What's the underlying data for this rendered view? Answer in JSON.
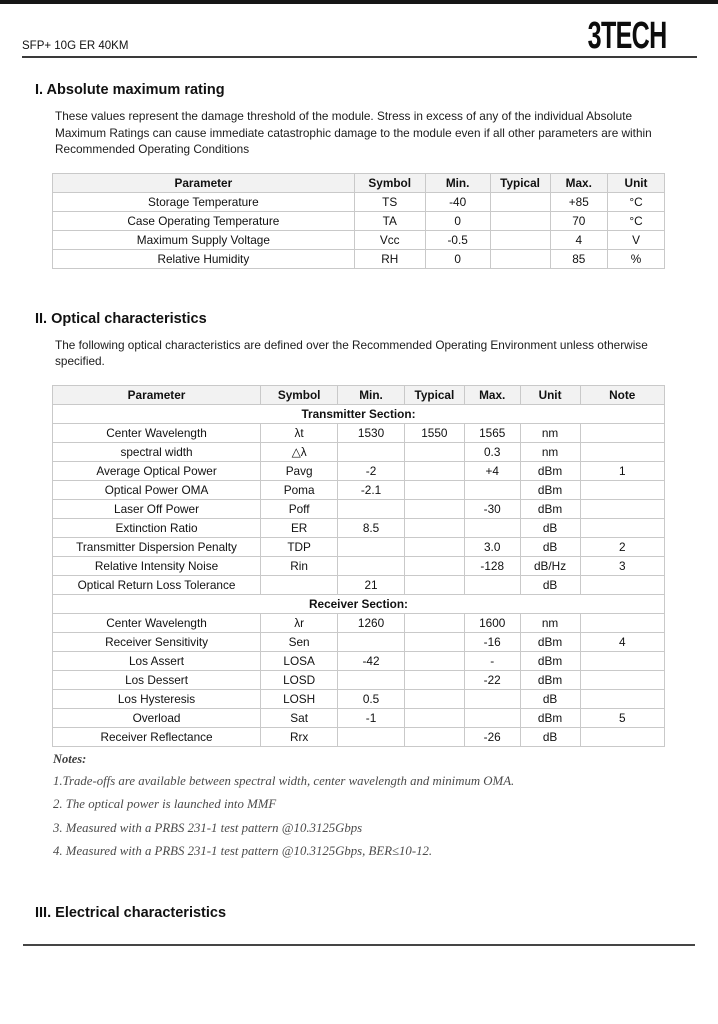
{
  "header": {
    "product": "SFP+ 10G ER 40KM",
    "logo": "3TECH"
  },
  "section1": {
    "title": "I. Absolute maximum rating",
    "description": "These values represent the damage threshold of the module. Stress in excess of any of the individual Absolute Maximum Ratings can cause immediate catastrophic damage to the module even if all other parameters are within Recommended Operating Conditions",
    "table": {
      "headers": [
        "Parameter",
        "Symbol",
        "Min.",
        "Typical",
        "Max.",
        "Unit"
      ],
      "rows": [
        [
          "Storage Temperature",
          "TS",
          "-40",
          "",
          "+85",
          "°C"
        ],
        [
          "Case Operating Temperature",
          "TA",
          "0",
          "",
          "70",
          "°C"
        ],
        [
          "Maximum Supply Voltage",
          "Vcc",
          "-0.5",
          "",
          "4",
          "V"
        ],
        [
          "Relative Humidity",
          "RH",
          "0",
          "",
          "85",
          "%"
        ]
      ]
    }
  },
  "section2": {
    "title": "II. Optical characteristics",
    "description": "The following optical characteristics are defined over the Recommended Operating Environment unless otherwise specified.",
    "table": {
      "headers": [
        "Parameter",
        "Symbol",
        "Min.",
        "Typical",
        "Max.",
        "Unit",
        "Note"
      ],
      "groups": [
        {
          "section_label": "Transmitter Section:",
          "rows": [
            [
              "Center Wavelength",
              "λt",
              "1530",
              "1550",
              "1565",
              "nm",
              ""
            ],
            [
              "spectral width",
              "△λ",
              "",
              "",
              "0.3",
              "nm",
              ""
            ],
            [
              "Average Optical Power",
              "Pavg",
              "-2",
              "",
              "+4",
              "dBm",
              "1"
            ],
            [
              "Optical Power OMA",
              "Poma",
              "-2.1",
              "",
              "",
              "dBm",
              ""
            ],
            [
              "Laser Off Power",
              "Poff",
              "",
              "",
              "-30",
              "dBm",
              ""
            ],
            [
              "Extinction Ratio",
              "ER",
              "8.5",
              "",
              "",
              "dB",
              ""
            ],
            [
              "Transmitter Dispersion Penalty",
              "TDP",
              "",
              "",
              "3.0",
              "dB",
              "2"
            ],
            [
              "Relative Intensity Noise",
              "Rin",
              "",
              "",
              "-128",
              "dB/Hz",
              "3"
            ],
            [
              "Optical Return Loss Tolerance",
              "",
              "21",
              "",
              "",
              "dB",
              ""
            ]
          ]
        },
        {
          "section_label": "Receiver Section:",
          "rows": [
            [
              "Center Wavelength",
              "λr",
              "1260",
              "",
              "1600",
              "nm",
              ""
            ],
            [
              "Receiver Sensitivity",
              "Sen",
              "",
              "",
              "-16",
              "dBm",
              "4"
            ],
            [
              "Los Assert",
              "LOSA",
              "-42",
              "",
              "-",
              "dBm",
              ""
            ],
            [
              "Los Dessert",
              "LOSD",
              "",
              "",
              "-22",
              "dBm",
              ""
            ],
            [
              "Los Hysteresis",
              "LOSH",
              "0.5",
              "",
              "",
              "dB",
              ""
            ],
            [
              "Overload",
              "Sat",
              "-1",
              "",
              "",
              "dBm",
              "5"
            ],
            [
              "Receiver Reflectance",
              "Rrx",
              "",
              "",
              "-26",
              "dB",
              ""
            ]
          ]
        }
      ]
    },
    "notes": {
      "label": "Notes:",
      "items": [
        "1.Trade-offs are available between spectral width, center wavelength and minimum OMA.",
        "2. The optical power is launched into MMF",
        "3. Measured with a PRBS 231-1 test pattern @10.3125Gbps",
        "4. Measured with a PRBS 231-1 test pattern @10.3125Gbps, BER≤10-12."
      ]
    }
  },
  "section3": {
    "title": "III. Electrical characteristics"
  }
}
